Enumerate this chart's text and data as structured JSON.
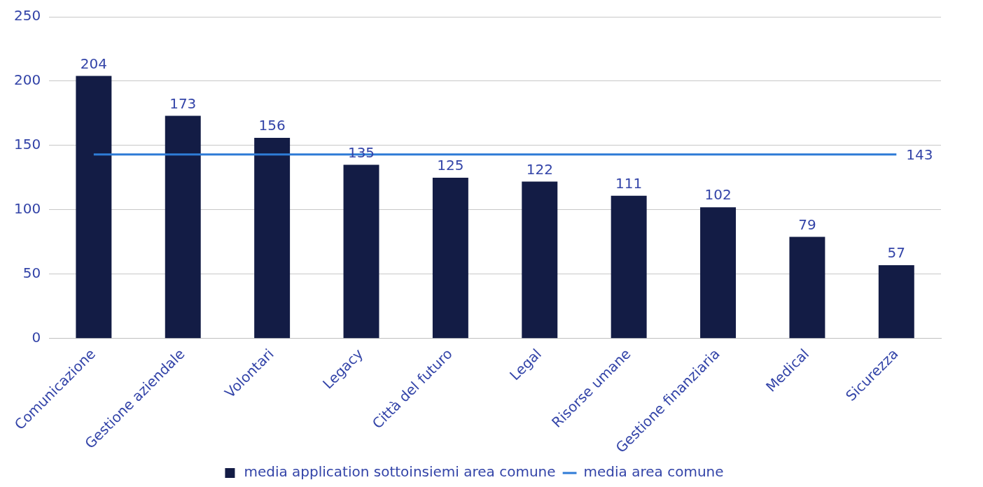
{
  "chart_data": {
    "type": "bar",
    "categories": [
      "Comunicazione",
      "Gestione aziendale",
      "Volontari",
      "Legacy",
      "Città del futuro",
      "Legal",
      "Risorse umane",
      "Gestione finanziaria",
      "Medical",
      "Sicurezza"
    ],
    "series": [
      {
        "name": "media application sottoinsiemi area comune",
        "color": "#131c45",
        "values": [
          204,
          173,
          156,
          135,
          125,
          122,
          111,
          102,
          79,
          57
        ],
        "value_labels": [
          "204",
          "173",
          "156",
          "135",
          "125",
          "122",
          "111",
          "102",
          "79",
          "57"
        ]
      },
      {
        "name": "media area comune",
        "type": "line",
        "color": "#2e7bd6",
        "values": [
          143,
          143,
          143,
          143,
          143,
          143,
          143,
          143,
          143,
          143
        ],
        "value_labels": [
          null,
          null,
          null,
          null,
          null,
          null,
          null,
          null,
          null,
          "143"
        ]
      }
    ],
    "ylim": [
      0,
      250
    ],
    "yticks": [
      0,
      50,
      100,
      150,
      200,
      250
    ],
    "grid": "y",
    "legend": "bottom",
    "marker": "none",
    "line_style": "solid"
  }
}
